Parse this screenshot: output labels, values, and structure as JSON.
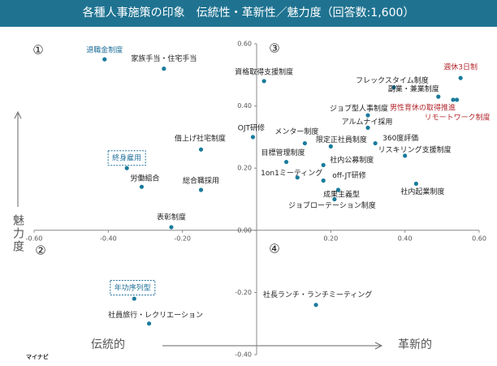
{
  "chart_data": {
    "type": "scatter",
    "title": "各種人事施策の印象　伝統性・革新性／魅力度（回答数:1,600）",
    "y_label": "魅力度",
    "x_left_label": "伝統的",
    "x_right_label": "革新的",
    "quadrants": [
      "①",
      "②",
      "③",
      "④"
    ],
    "logo": "マイナビ",
    "color": "#1a7b9c",
    "xlim": [
      -0.6,
      0.6
    ],
    "ylim": [
      -0.4,
      0.6
    ],
    "xticks": [
      {
        "value": -0.6,
        "label": "-0.60"
      },
      {
        "value": -0.4,
        "label": "-0.40"
      },
      {
        "value": -0.2,
        "label": "-0.20"
      },
      {
        "value": 0.2,
        "label": "0.20"
      },
      {
        "value": 0.4,
        "label": "0.40"
      },
      {
        "value": 0.6,
        "label": "0.60"
      }
    ],
    "yticks": [
      {
        "value": -0.4,
        "label": "-0.40"
      },
      {
        "value": -0.2,
        "label": "-0.20"
      },
      {
        "value": 0,
        "label": "0.00"
      },
      {
        "value": 0.2,
        "label": "0.20"
      },
      {
        "value": 0.4,
        "label": "0.40"
      },
      {
        "value": 0.6,
        "label": "0.60"
      }
    ],
    "points": [
      {
        "label": "退職金制度",
        "x": -0.41,
        "y": 0.55
      },
      {
        "label": "家族手当・住宅手当",
        "x": -0.25,
        "y": 0.52
      },
      {
        "label": "資格取得支援制度",
        "x": 0.02,
        "y": 0.48
      },
      {
        "label": "週休3日制",
        "x": 0.55,
        "y": 0.49
      },
      {
        "label": "フレックスタイム制度",
        "x": 0.37,
        "y": 0.46
      },
      {
        "label": "副業・兼業制度",
        "x": 0.49,
        "y": 0.43
      },
      {
        "label": "男性育休の取得推進",
        "x": 0.53,
        "y": 0.42
      },
      {
        "label": "リモートワーク制度",
        "x": 0.54,
        "y": 0.42
      },
      {
        "label": "ジョブ型人事制度",
        "x": 0.3,
        "y": 0.37
      },
      {
        "label": "アルムナイ採用",
        "x": 0.3,
        "y": 0.33
      },
      {
        "label": "360度評価",
        "x": 0.32,
        "y": 0.28
      },
      {
        "label": "メンター制度",
        "x": 0.13,
        "y": 0.28
      },
      {
        "label": "限定正社員制度",
        "x": 0.2,
        "y": 0.27
      },
      {
        "label": "OJT研修",
        "x": -0.01,
        "y": 0.3
      },
      {
        "label": "借上げ社宅制度",
        "x": -0.15,
        "y": 0.26
      },
      {
        "label": "目標管理制度",
        "x": 0.08,
        "y": 0.22
      },
      {
        "label": "リスキリング支援制度",
        "x": 0.4,
        "y": 0.24
      },
      {
        "label": "社内公募制度",
        "x": 0.18,
        "y": 0.21
      },
      {
        "label": "1on1ミーティング",
        "x": 0.11,
        "y": 0.17
      },
      {
        "label": "off-JT研修",
        "x": 0.18,
        "y": 0.16
      },
      {
        "label": "成果主義型",
        "x": 0.22,
        "y": 0.13
      },
      {
        "label": "ジョブローテーション制度",
        "x": 0.21,
        "y": 0.1
      },
      {
        "label": "社内起業制度",
        "x": 0.43,
        "y": 0.15
      },
      {
        "label": "終身雇用",
        "x": -0.35,
        "y": 0.2
      },
      {
        "label": "労働組合",
        "x": -0.31,
        "y": 0.14
      },
      {
        "label": "総合職採用",
        "x": -0.15,
        "y": 0.13
      },
      {
        "label": "表彰制度",
        "x": -0.23,
        "y": 0.01
      },
      {
        "label": "社長ランチ・ランチミーティング",
        "x": 0.16,
        "y": -0.24
      },
      {
        "label": "年功序列型",
        "x": -0.33,
        "y": -0.22
      },
      {
        "label": "社員旅行・レクリエーション",
        "x": -0.29,
        "y": -0.3
      }
    ]
  }
}
